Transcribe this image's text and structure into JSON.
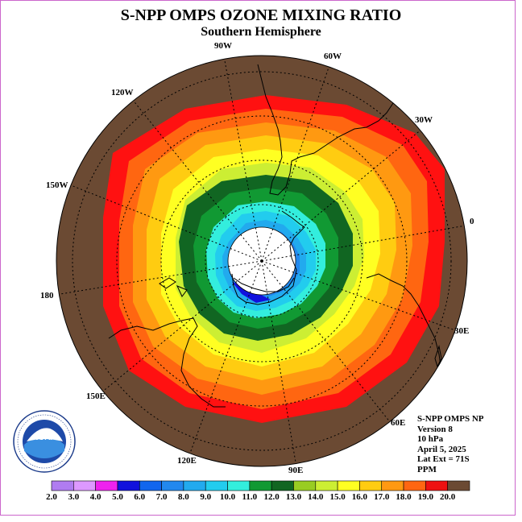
{
  "title": "S-NPP OMPS OZONE MIXING RATIO",
  "subtitle": "Southern Hemisphere",
  "longitude_labels": [
    "90W",
    "60W",
    "30W",
    "0",
    "30E",
    "60E",
    "90E",
    "120E",
    "150E",
    "180",
    "150W",
    "120W"
  ],
  "info": {
    "line1": "S-NPP OMPS NP",
    "line2": "Version 8",
    "line3": "10 hPa",
    "line4": "April 5, 2025",
    "line5": "Lat Ext = 71S",
    "line6": "PPM"
  },
  "logo": {
    "text": "NOAA",
    "ring_text": "NATIONAL OCEANIC AND ATMOSPHERIC ADMINISTRATION · U.S. DEPARTMENT OF COMMERCE"
  },
  "colorbar": {
    "ticks": [
      "2.0",
      "3.0",
      "4.0",
      "5.0",
      "6.0",
      "7.0",
      "8.0",
      "9.0",
      "10.0",
      "11.0",
      "12.0",
      "13.0",
      "14.0",
      "15.0",
      "16.0",
      "17.0",
      "18.0",
      "19.0",
      "20.0"
    ],
    "colors": [
      "#b07cf0",
      "#dd99ff",
      "#ee22ee",
      "#1111dd",
      "#1166ee",
      "#2288ee",
      "#22aaee",
      "#22ccee",
      "#33eedd",
      "#119933",
      "#116622",
      "#99cc22",
      "#ccee33",
      "#ffff22",
      "#ffcc11",
      "#ff9911",
      "#ff6611",
      "#ee1111",
      "#6b4a33"
    ]
  },
  "contour_colors": {
    "background": "#6b4a33",
    "bands": [
      "#ff1111",
      "#ff6611",
      "#ff9911",
      "#ffcc11",
      "#ffff22",
      "#ccee33",
      "#99cc22",
      "#116622",
      "#119933",
      "#33eedd",
      "#22ccee",
      "#22aaee",
      "#2288ee"
    ],
    "center": "#ffffff"
  }
}
